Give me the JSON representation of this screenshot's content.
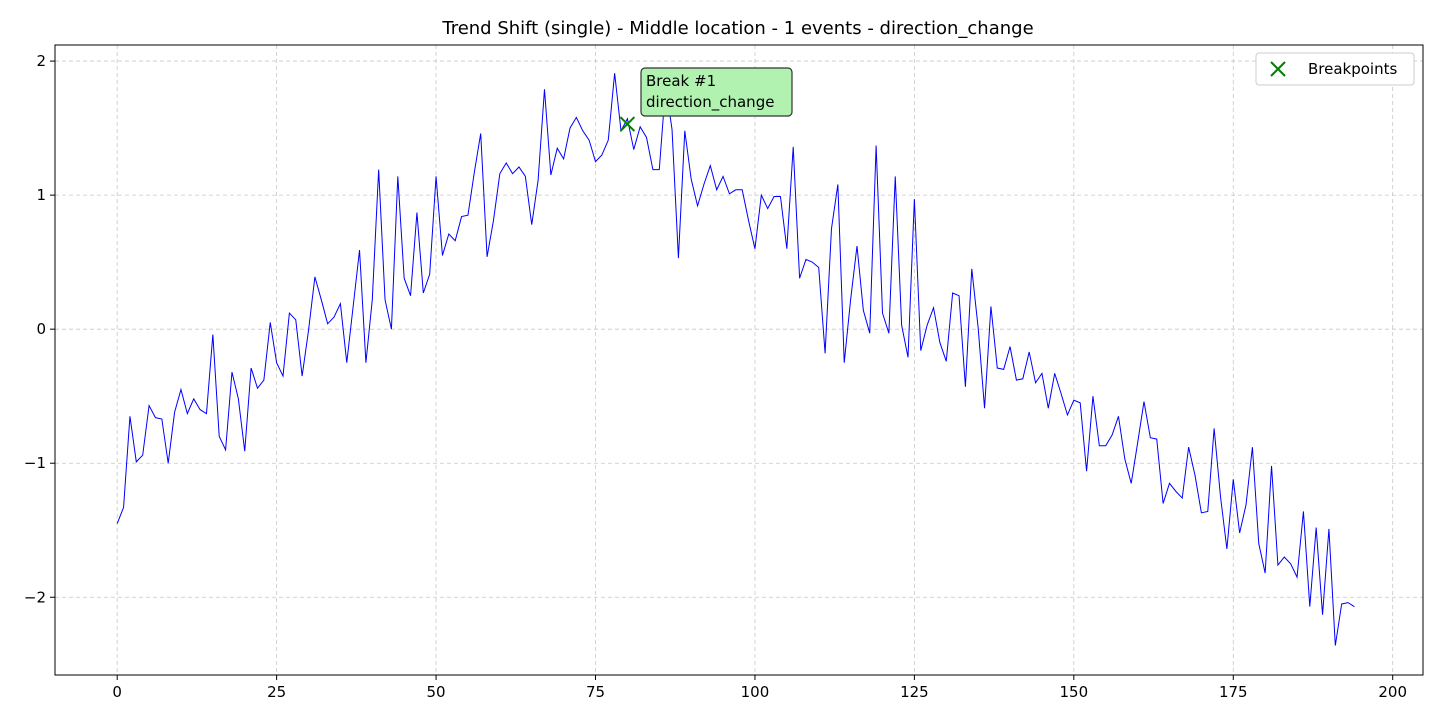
{
  "chart_data": {
    "type": "line",
    "title": "Trend Shift (single) - Middle location - 1 events - direction_change",
    "xlabel": "",
    "ylabel": "",
    "xlim": [
      -9.75,
      204.75
    ],
    "ylim": [
      -2.58,
      2.12
    ],
    "x_ticks": [
      0,
      25,
      50,
      75,
      100,
      125,
      150,
      175,
      200
    ],
    "x_tick_labels": [
      "0",
      "25",
      "50",
      "75",
      "100",
      "125",
      "150",
      "175",
      "200"
    ],
    "y_ticks": [
      -2,
      -1,
      0,
      1,
      2
    ],
    "y_tick_labels": [
      "−2",
      "−1",
      "0",
      "1",
      "2"
    ],
    "grid": true,
    "series": [
      {
        "color": "#0000ff",
        "x_start": 0,
        "values": [
          -1.45,
          -1.33,
          -0.65,
          -0.99,
          -0.94,
          -0.57,
          -0.66,
          -0.67,
          -1.0,
          -0.62,
          -0.45,
          -0.63,
          -0.52,
          -0.6,
          -0.63,
          -0.04,
          -0.8,
          -0.9,
          -0.32,
          -0.52,
          -0.91,
          -0.29,
          -0.44,
          -0.38,
          0.05,
          -0.25,
          -0.35,
          0.12,
          0.07,
          -0.35,
          -0.01,
          0.39,
          0.22,
          0.04,
          0.09,
          0.19,
          -0.25,
          0.17,
          0.59,
          -0.25,
          0.22,
          1.19,
          0.22,
          0.0,
          1.14,
          0.38,
          0.25,
          0.87,
          0.27,
          0.41,
          1.14,
          0.55,
          0.71,
          0.66,
          0.84,
          0.85,
          1.17,
          1.46,
          0.54,
          0.81,
          1.16,
          1.24,
          1.16,
          1.21,
          1.14,
          0.78,
          1.11,
          1.79,
          1.15,
          1.35,
          1.27,
          1.5,
          1.58,
          1.48,
          1.41,
          1.25,
          1.3,
          1.41,
          1.91,
          1.48,
          1.57,
          1.34,
          1.51,
          1.43,
          1.19,
          1.19,
          1.82,
          1.49,
          0.53,
          1.48,
          1.12,
          0.92,
          1.08,
          1.22,
          1.04,
          1.14,
          1.01,
          1.04,
          1.04,
          0.81,
          0.6,
          1.0,
          0.9,
          0.99,
          0.99,
          0.6,
          1.36,
          0.38,
          0.52,
          0.5,
          0.46,
          -0.18,
          0.75,
          1.08,
          -0.25,
          0.22,
          0.62,
          0.14,
          -0.03,
          1.37,
          0.12,
          -0.03,
          1.14,
          0.03,
          -0.21,
          0.97,
          -0.16,
          0.03,
          0.16,
          -0.1,
          -0.24,
          0.27,
          0.25,
          -0.43,
          0.45,
          0.01,
          -0.59,
          0.17,
          -0.29,
          -0.3,
          -0.13,
          -0.38,
          -0.37,
          -0.17,
          -0.4,
          -0.33,
          -0.59,
          -0.33,
          -0.48,
          -0.64,
          -0.53,
          -0.55,
          -1.06,
          -0.5,
          -0.87,
          -0.87,
          -0.79,
          -0.65,
          -0.97,
          -1.15,
          -0.85,
          -0.54,
          -0.81,
          -0.82,
          -1.3,
          -1.15,
          -1.21,
          -1.26,
          -0.88,
          -1.09,
          -1.37,
          -1.36,
          -0.74,
          -1.25,
          -1.64,
          -1.12,
          -1.52,
          -1.31,
          -0.88,
          -1.6,
          -1.82,
          -1.02,
          -1.76,
          -1.7,
          -1.75,
          -1.85,
          -1.36,
          -2.07,
          -1.48,
          -2.13,
          -1.49,
          -2.36,
          -2.05,
          -2.04,
          -2.07
        ]
      }
    ],
    "breakpoints": [
      {
        "x": 80,
        "y": 1.53,
        "color": "#008000"
      }
    ],
    "annotations": [
      {
        "line1": "Break #1",
        "line2": "direction_change",
        "x": 80,
        "y": 1.53
      }
    ],
    "legend": {
      "position": "top-right",
      "label": "Breakpoints",
      "marker_color": "#008000"
    }
  }
}
